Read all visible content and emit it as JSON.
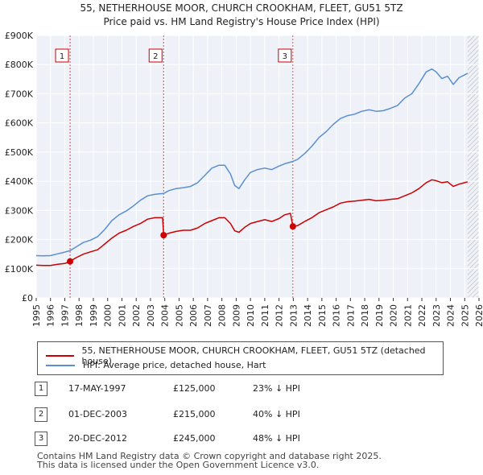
{
  "chart_data": {
    "type": "line",
    "title_line1": "55, NETHERHOUSE MOOR, CHURCH CROOKHAM, FLEET, GU51 5TZ",
    "title_line2": "Price paid vs. HM Land Registry's House Price Index (HPI)",
    "xlim": [
      1995,
      2026
    ],
    "ylim": [
      0,
      900000
    ],
    "y_ticks": [
      {
        "value": 0,
        "label": "£0"
      },
      {
        "value": 100000,
        "label": "£100K"
      },
      {
        "value": 200000,
        "label": "£200K"
      },
      {
        "value": 300000,
        "label": "£300K"
      },
      {
        "value": 400000,
        "label": "£400K"
      },
      {
        "value": 500000,
        "label": "£500K"
      },
      {
        "value": 600000,
        "label": "£600K"
      },
      {
        "value": 700000,
        "label": "£700K"
      },
      {
        "value": 800000,
        "label": "£800K"
      },
      {
        "value": 900000,
        "label": "£900K"
      }
    ],
    "x_ticks": [
      "1995",
      "1996",
      "1997",
      "1998",
      "1999",
      "2000",
      "2001",
      "2002",
      "2003",
      "2004",
      "2005",
      "2006",
      "2007",
      "2008",
      "2009",
      "2010",
      "2011",
      "2012",
      "2013",
      "2014",
      "2015",
      "2016",
      "2017",
      "2018",
      "2019",
      "2020",
      "2021",
      "2022",
      "2023",
      "2024",
      "2025",
      "2026"
    ],
    "hatch_from_year": 2025.2,
    "series": [
      {
        "name": "55, NETHERHOUSE MOOR, CHURCH CROOKHAM, FLEET, GU51 5TZ (detached house)",
        "color": "#cc0000",
        "points": [
          [
            1995.0,
            112000
          ],
          [
            1995.5,
            111000
          ],
          [
            1996.0,
            111000
          ],
          [
            1996.5,
            115000
          ],
          [
            1997.0,
            118000
          ],
          [
            1997.37,
            125000
          ],
          [
            1997.8,
            138000
          ],
          [
            1998.3,
            150000
          ],
          [
            1998.8,
            158000
          ],
          [
            1999.3,
            165000
          ],
          [
            1999.8,
            185000
          ],
          [
            2000.3,
            205000
          ],
          [
            2000.8,
            222000
          ],
          [
            2001.3,
            232000
          ],
          [
            2001.8,
            245000
          ],
          [
            2002.3,
            255000
          ],
          [
            2002.8,
            270000
          ],
          [
            2003.3,
            275000
          ],
          [
            2003.85,
            275000
          ],
          [
            2003.92,
            215000
          ],
          [
            2004.3,
            222000
          ],
          [
            2004.8,
            228000
          ],
          [
            2005.3,
            232000
          ],
          [
            2005.8,
            232000
          ],
          [
            2006.3,
            240000
          ],
          [
            2006.8,
            255000
          ],
          [
            2007.3,
            265000
          ],
          [
            2007.8,
            275000
          ],
          [
            2008.2,
            275000
          ],
          [
            2008.6,
            255000
          ],
          [
            2008.9,
            230000
          ],
          [
            2009.2,
            225000
          ],
          [
            2009.6,
            242000
          ],
          [
            2010.0,
            255000
          ],
          [
            2010.5,
            262000
          ],
          [
            2011.0,
            268000
          ],
          [
            2011.5,
            262000
          ],
          [
            2012.0,
            272000
          ],
          [
            2012.4,
            285000
          ],
          [
            2012.8,
            290000
          ],
          [
            2012.97,
            245000
          ],
          [
            2013.3,
            248000
          ],
          [
            2013.8,
            262000
          ],
          [
            2014.3,
            275000
          ],
          [
            2014.8,
            292000
          ],
          [
            2015.3,
            302000
          ],
          [
            2015.8,
            312000
          ],
          [
            2016.3,
            325000
          ],
          [
            2016.8,
            330000
          ],
          [
            2017.3,
            332000
          ],
          [
            2017.8,
            335000
          ],
          [
            2018.3,
            338000
          ],
          [
            2018.8,
            333000
          ],
          [
            2019.3,
            335000
          ],
          [
            2019.8,
            338000
          ],
          [
            2020.3,
            340000
          ],
          [
            2020.8,
            350000
          ],
          [
            2021.3,
            360000
          ],
          [
            2021.8,
            375000
          ],
          [
            2022.3,
            395000
          ],
          [
            2022.7,
            405000
          ],
          [
            2023.0,
            402000
          ],
          [
            2023.4,
            395000
          ],
          [
            2023.8,
            398000
          ],
          [
            2024.2,
            382000
          ],
          [
            2024.6,
            390000
          ],
          [
            2025.0,
            395000
          ],
          [
            2025.2,
            398000
          ]
        ]
      },
      {
        "name": "HPI: Average price, detached house, Hart",
        "color": "#5b8fd0",
        "points": [
          [
            1995.0,
            145000
          ],
          [
            1995.5,
            144000
          ],
          [
            1996.0,
            145000
          ],
          [
            1996.5,
            151000
          ],
          [
            1997.0,
            157000
          ],
          [
            1997.37,
            162000
          ],
          [
            1997.8,
            175000
          ],
          [
            1998.3,
            190000
          ],
          [
            1998.8,
            198000
          ],
          [
            1999.3,
            210000
          ],
          [
            1999.8,
            235000
          ],
          [
            2000.3,
            265000
          ],
          [
            2000.8,
            285000
          ],
          [
            2001.3,
            298000
          ],
          [
            2001.8,
            315000
          ],
          [
            2002.3,
            335000
          ],
          [
            2002.8,
            350000
          ],
          [
            2003.3,
            355000
          ],
          [
            2003.92,
            358000
          ],
          [
            2004.3,
            368000
          ],
          [
            2004.8,
            375000
          ],
          [
            2005.3,
            378000
          ],
          [
            2005.8,
            382000
          ],
          [
            2006.3,
            395000
          ],
          [
            2006.8,
            420000
          ],
          [
            2007.3,
            445000
          ],
          [
            2007.8,
            455000
          ],
          [
            2008.2,
            455000
          ],
          [
            2008.6,
            425000
          ],
          [
            2008.9,
            385000
          ],
          [
            2009.2,
            375000
          ],
          [
            2009.6,
            405000
          ],
          [
            2010.0,
            430000
          ],
          [
            2010.5,
            440000
          ],
          [
            2011.0,
            445000
          ],
          [
            2011.5,
            440000
          ],
          [
            2012.0,
            452000
          ],
          [
            2012.4,
            460000
          ],
          [
            2012.97,
            468000
          ],
          [
            2013.3,
            475000
          ],
          [
            2013.8,
            495000
          ],
          [
            2014.3,
            520000
          ],
          [
            2014.8,
            550000
          ],
          [
            2015.3,
            570000
          ],
          [
            2015.8,
            595000
          ],
          [
            2016.3,
            615000
          ],
          [
            2016.8,
            625000
          ],
          [
            2017.3,
            630000
          ],
          [
            2017.8,
            640000
          ],
          [
            2018.3,
            645000
          ],
          [
            2018.8,
            640000
          ],
          [
            2019.3,
            642000
          ],
          [
            2019.8,
            650000
          ],
          [
            2020.3,
            660000
          ],
          [
            2020.8,
            685000
          ],
          [
            2021.3,
            700000
          ],
          [
            2021.8,
            735000
          ],
          [
            2022.3,
            775000
          ],
          [
            2022.7,
            785000
          ],
          [
            2023.0,
            775000
          ],
          [
            2023.4,
            752000
          ],
          [
            2023.8,
            760000
          ],
          [
            2024.2,
            732000
          ],
          [
            2024.6,
            755000
          ],
          [
            2025.0,
            765000
          ],
          [
            2025.2,
            770000
          ]
        ]
      }
    ],
    "sale_markers": [
      {
        "label": "1",
        "x": 1997.37,
        "y": 125000
      },
      {
        "label": "2",
        "x": 2003.92,
        "y": 215000
      },
      {
        "label": "3",
        "x": 2012.97,
        "y": 245000
      }
    ]
  },
  "legend": {
    "property_label": "55, NETHERHOUSE MOOR, CHURCH CROOKHAM, FLEET, GU51 5TZ (detached house)",
    "hpi_label": "HPI: Average price, detached house, Hart"
  },
  "sales": [
    {
      "num": "1",
      "date": "17-MAY-1997",
      "price": "£125,000",
      "hpi": "23% ↓ HPI"
    },
    {
      "num": "2",
      "date": "01-DEC-2003",
      "price": "£215,000",
      "hpi": "40% ↓ HPI"
    },
    {
      "num": "3",
      "date": "20-DEC-2012",
      "price": "£245,000",
      "hpi": "48% ↓ HPI"
    }
  ],
  "footer": {
    "line1": "Contains HM Land Registry data © Crown copyright and database right 2025.",
    "line2": "This data is licensed under the Open Government Licence v3.0."
  },
  "colors": {
    "property": "#cc0000",
    "hpi": "#5b8fd0",
    "plot_bg": "#eef2f8",
    "marker_line": "#cc0000"
  }
}
